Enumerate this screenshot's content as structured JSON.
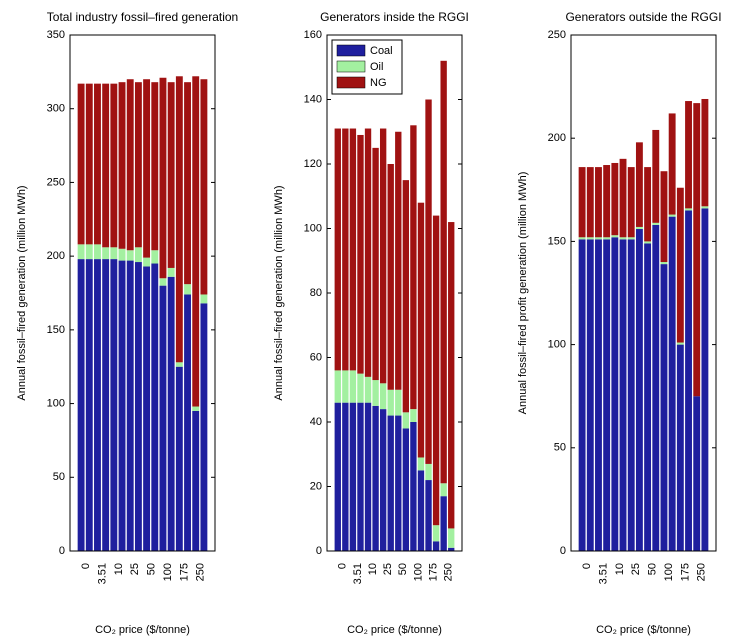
{
  "chart_data": [
    {
      "type": "stacked-bar",
      "title": "Total industry fossil–fired generation",
      "y_label": "Annual fossil–fired generation (million MWh)",
      "x_label": "CO₂ price ($/tonne)",
      "categories": [
        "0",
        null,
        "3.51",
        null,
        "10",
        null,
        "25",
        null,
        "50",
        null,
        "100",
        null,
        "175",
        null,
        "250",
        null
      ],
      "ylim": [
        0,
        350
      ],
      "yticks": [
        0,
        50,
        100,
        150,
        200,
        250,
        300,
        350
      ],
      "series": [
        {
          "color": "#1f1f9e",
          "values": [
            198,
            198,
            198,
            198,
            198,
            197,
            197,
            196,
            193,
            195,
            180,
            186,
            125,
            174,
            95,
            168
          ]
        },
        {
          "color": "#a3f0a0",
          "values": [
            10,
            10,
            10,
            8,
            8,
            8,
            7,
            10,
            6,
            9,
            5,
            6,
            3,
            7,
            3,
            6
          ]
        },
        {
          "color": "#a01212",
          "values": [
            109,
            109,
            109,
            111,
            111,
            113,
            116,
            112,
            121,
            114,
            136,
            126,
            194,
            137,
            224,
            146
          ]
        }
      ]
    },
    {
      "type": "stacked-bar",
      "title": "Generators inside the RGGI",
      "y_label": "Annual fossil–fired generation (million MWh)",
      "x_label": "CO₂ price ($/tonne)",
      "categories": [
        "0",
        null,
        "3.51",
        null,
        "10",
        null,
        "25",
        null,
        "50",
        null,
        "100",
        null,
        "175",
        null,
        "250",
        null
      ],
      "ylim": [
        0,
        160
      ],
      "yticks": [
        0,
        20,
        40,
        60,
        80,
        100,
        120,
        140,
        160
      ],
      "legend": "upper left",
      "series": [
        {
          "name": "Coal",
          "color": "#1f1f9e",
          "values": [
            46,
            46,
            46,
            46,
            46,
            45,
            44,
            42,
            42,
            38,
            40,
            25,
            22,
            3,
            17,
            1
          ]
        },
        {
          "name": "Oil",
          "color": "#a3f0a0",
          "values": [
            10,
            10,
            10,
            9,
            8,
            8,
            8,
            8,
            8,
            5,
            4,
            4,
            5,
            5,
            4,
            6
          ]
        },
        {
          "name": "NG",
          "color": "#a01212",
          "values": [
            75,
            75,
            75,
            74,
            77,
            72,
            79,
            70,
            80,
            72,
            88,
            79,
            113,
            96,
            131,
            95
          ]
        }
      ]
    },
    {
      "type": "stacked-bar",
      "title": "Generators outside the RGGI",
      "y_label": "Annual fossil–fired profit generation (million MWh)",
      "x_label": "CO₂ price ($/tonne)",
      "categories": [
        "0",
        null,
        "3.51",
        null,
        "10",
        null,
        "25",
        null,
        "50",
        null,
        "100",
        null,
        "175",
        null,
        "250",
        null
      ],
      "ylim": [
        0,
        250
      ],
      "yticks": [
        0,
        50,
        100,
        150,
        200,
        250
      ],
      "series": [
        {
          "color": "#1f1f9e",
          "values": [
            151,
            151,
            151,
            151,
            152,
            151,
            151,
            156,
            149,
            158,
            139,
            162,
            100,
            165,
            75,
            166
          ]
        },
        {
          "color": "#a3f0a0",
          "values": [
            1,
            1,
            1,
            1,
            1,
            1,
            1,
            1,
            1,
            1,
            1,
            1,
            1,
            1,
            0,
            1
          ]
        },
        {
          "color": "#a01212",
          "values": [
            34,
            34,
            34,
            35,
            35,
            38,
            34,
            41,
            36,
            45,
            44,
            49,
            75,
            52,
            142,
            52
          ]
        }
      ]
    }
  ]
}
